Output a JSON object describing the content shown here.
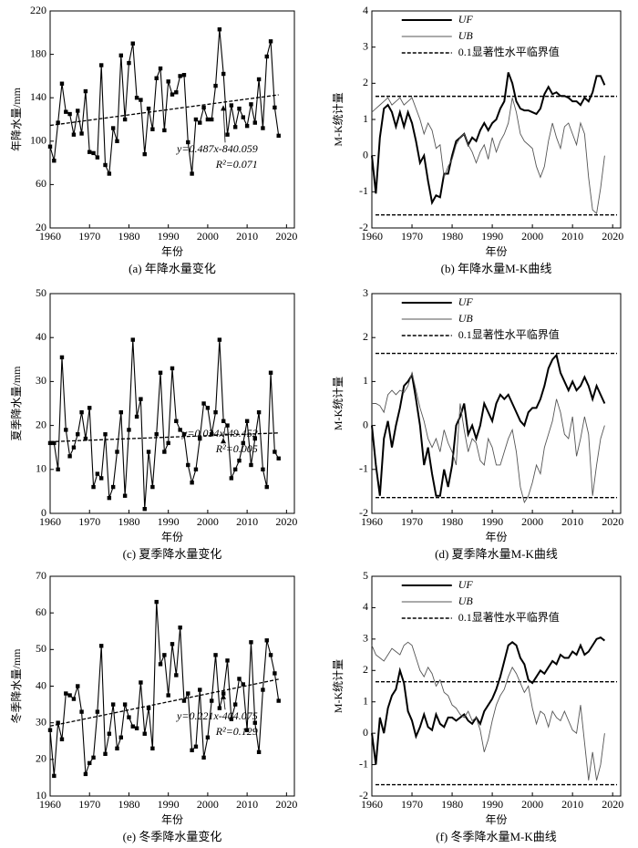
{
  "chart_data": [
    {
      "type": "line",
      "caption": "(a) 年降水量变化",
      "xlabel": "年份",
      "ylabel": "年降水量/mm",
      "color": "#000000",
      "x": [
        1960,
        1961,
        1962,
        1963,
        1964,
        1965,
        1966,
        1967,
        1968,
        1969,
        1970,
        1971,
        1972,
        1973,
        1974,
        1975,
        1976,
        1977,
        1978,
        1979,
        1980,
        1981,
        1982,
        1983,
        1984,
        1985,
        1986,
        1987,
        1988,
        1989,
        1990,
        1991,
        1992,
        1993,
        1994,
        1995,
        1996,
        1997,
        1998,
        1999,
        2000,
        2001,
        2002,
        2003,
        2004,
        2005,
        2006,
        2007,
        2008,
        2009,
        2010,
        2011,
        2012,
        2013,
        2014,
        2015,
        2016,
        2017,
        2018
      ],
      "values": [
        95,
        82,
        117,
        153,
        127,
        125,
        106,
        128,
        107,
        146,
        90,
        89,
        85,
        170,
        78,
        70,
        112,
        100,
        179,
        120,
        172,
        190,
        140,
        138,
        88,
        130,
        111,
        158,
        167,
        110,
        155,
        143,
        145,
        160,
        161,
        99,
        70,
        120,
        117,
        131,
        120,
        120,
        151,
        203,
        162,
        106,
        133,
        113,
        130,
        122,
        114,
        134,
        117,
        157,
        112,
        178,
        192,
        131,
        105
      ],
      "trend": {
        "x": [
          1960,
          2018
        ],
        "values": [
          114.5,
          142.7
        ]
      },
      "annotations": [
        "y=0.487x-840.059",
        "R²=0.071"
      ],
      "xlim": [
        1960,
        2022
      ],
      "xticks": [
        1960,
        1970,
        1980,
        1990,
        2000,
        2010,
        2020
      ],
      "ylim": [
        20,
        220
      ],
      "yticks": [
        20,
        60,
        100,
        140,
        180,
        220
      ]
    },
    {
      "type": "mk",
      "caption": "(b) 年降水量M-K曲线",
      "xlabel": "年份",
      "ylabel": "M-K统计量",
      "x": [
        1960,
        1961,
        1962,
        1963,
        1964,
        1965,
        1966,
        1967,
        1968,
        1969,
        1970,
        1971,
        1972,
        1973,
        1974,
        1975,
        1976,
        1977,
        1978,
        1979,
        1980,
        1981,
        1982,
        1983,
        1984,
        1985,
        1986,
        1987,
        1988,
        1989,
        1990,
        1991,
        1992,
        1993,
        1994,
        1995,
        1996,
        1997,
        1998,
        1999,
        2000,
        2001,
        2002,
        2003,
        2004,
        2005,
        2006,
        2007,
        2008,
        2009,
        2010,
        2011,
        2012,
        2013,
        2014,
        2015,
        2016,
        2017,
        2018
      ],
      "series": [
        {
          "name": "UF",
          "color": "#000000",
          "values": [
            0,
            -1.05,
            0.5,
            1.3,
            1.4,
            1.2,
            0.8,
            1.2,
            0.8,
            1.2,
            0.9,
            0.4,
            -0.2,
            0,
            -0.7,
            -1.3,
            -1.1,
            -1.15,
            -0.5,
            -0.5,
            0,
            0.4,
            0.5,
            0.6,
            0.3,
            0.5,
            0.4,
            0.7,
            0.9,
            0.7,
            0.9,
            1.0,
            1.3,
            1.5,
            2.3,
            2.0,
            1.5,
            1.3,
            1.25,
            1.25,
            1.2,
            1.15,
            1.3,
            1.7,
            1.9,
            1.7,
            1.75,
            1.65,
            1.65,
            1.6,
            1.5,
            1.5,
            1.4,
            1.6,
            1.5,
            1.75,
            2.2,
            2.2,
            1.95
          ]
        },
        {
          "name": "UB",
          "color": "#555555",
          "values": [
            1.2,
            1.3,
            1.4,
            1.5,
            1.6,
            1.4,
            1.5,
            1.6,
            1.4,
            1.5,
            1.6,
            1.3,
            1.0,
            0.6,
            0.9,
            0.7,
            0.2,
            0.3,
            -0.6,
            -0.3,
            -0.1,
            0.3,
            0.5,
            0.6,
            0.3,
            0.1,
            -0.2,
            0.1,
            0.3,
            -0.1,
            0.5,
            0.1,
            0.4,
            0.6,
            0.9,
            1.6,
            1.2,
            0.6,
            0.4,
            0.3,
            0.2,
            -0.3,
            -0.6,
            -0.3,
            0.4,
            0.9,
            0.5,
            0.2,
            0.8,
            0.9,
            0.6,
            0.3,
            0.9,
            0.6,
            -0.6,
            -1.5,
            -1.6,
            -0.9,
            0
          ]
        }
      ],
      "critical": {
        "name": "0.1显著性水平临界值",
        "values": [
          1.64,
          -1.64
        ]
      },
      "xlim": [
        1960,
        2022
      ],
      "xticks": [
        1960,
        1970,
        1980,
        1990,
        2000,
        2010,
        2020
      ],
      "ylim": [
        -2,
        4
      ],
      "yticks": [
        -2,
        -1,
        0,
        1,
        2,
        3,
        4
      ]
    },
    {
      "type": "line",
      "caption": "(c) 夏季降水量变化",
      "xlabel": "年份",
      "ylabel": "夏季降水量/mm",
      "color": "#000000",
      "x": [
        1960,
        1961,
        1962,
        1963,
        1964,
        1965,
        1966,
        1967,
        1968,
        1969,
        1970,
        1971,
        1972,
        1973,
        1974,
        1975,
        1976,
        1977,
        1978,
        1979,
        1980,
        1981,
        1982,
        1983,
        1984,
        1985,
        1986,
        1987,
        1988,
        1989,
        1990,
        1991,
        1992,
        1993,
        1994,
        1995,
        1996,
        1997,
        1998,
        1999,
        2000,
        2001,
        2002,
        2003,
        2004,
        2005,
        2006,
        2007,
        2008,
        2009,
        2010,
        2011,
        2012,
        2013,
        2014,
        2015,
        2016,
        2017,
        2018
      ],
      "values": [
        16,
        16,
        10,
        35.5,
        19,
        13,
        15,
        18,
        23,
        17,
        24,
        6,
        9,
        8,
        18,
        3.5,
        6,
        14,
        23,
        4,
        19,
        39.5,
        22,
        26,
        1,
        14,
        6,
        18,
        32,
        14,
        16,
        33,
        21,
        19,
        18,
        11,
        7,
        10,
        17,
        25,
        24,
        18,
        23,
        39.5,
        21,
        20,
        8,
        10,
        12,
        16,
        21,
        11,
        17,
        23,
        10,
        6,
        32,
        14,
        12.5
      ],
      "trend": {
        "x": [
          1960,
          2018
        ],
        "values": [
          16.3,
          18.3
        ]
      },
      "annotations": [
        "y=0.034x-49.452",
        "R²=0.005"
      ],
      "xlim": [
        1960,
        2022
      ],
      "xticks": [
        1960,
        1970,
        1980,
        1990,
        2000,
        2010,
        2020
      ],
      "ylim": [
        0,
        50
      ],
      "yticks": [
        0,
        10,
        20,
        30,
        40,
        50
      ]
    },
    {
      "type": "mk",
      "caption": "(d) 夏季降水量M-K曲线",
      "xlabel": "年份",
      "ylabel": "M-K统计量",
      "x": [
        1960,
        1961,
        1962,
        1963,
        1964,
        1965,
        1966,
        1967,
        1968,
        1969,
        1970,
        1971,
        1972,
        1973,
        1974,
        1975,
        1976,
        1977,
        1978,
        1979,
        1980,
        1981,
        1982,
        1983,
        1984,
        1985,
        1986,
        1987,
        1988,
        1989,
        1990,
        1991,
        1992,
        1993,
        1994,
        1995,
        1996,
        1997,
        1998,
        1999,
        2000,
        2001,
        2002,
        2003,
        2004,
        2005,
        2006,
        2007,
        2008,
        2009,
        2010,
        2011,
        2012,
        2013,
        2014,
        2015,
        2016,
        2017,
        2018
      ],
      "series": [
        {
          "name": "UF",
          "color": "#000000",
          "values": [
            0,
            -0.9,
            -1.6,
            -0.3,
            0.1,
            -0.5,
            0,
            0.4,
            0.9,
            1.0,
            1.15,
            0.6,
            0,
            -0.9,
            -0.5,
            -1.1,
            -1.6,
            -1.6,
            -1.0,
            -1.4,
            -0.9,
            0,
            0.2,
            0.5,
            -0.2,
            0,
            -0.3,
            0,
            0.5,
            0.3,
            0.1,
            0.5,
            0.7,
            0.6,
            0.7,
            0.5,
            0.3,
            0.1,
            0,
            0.3,
            0.4,
            0.4,
            0.6,
            0.9,
            1.3,
            1.5,
            1.6,
            1.2,
            1.0,
            0.8,
            1.0,
            0.8,
            0.9,
            1.1,
            0.9,
            0.6,
            0.9,
            0.7,
            0.5
          ]
        },
        {
          "name": "UB",
          "color": "#555555",
          "values": [
            0.5,
            0.5,
            0.45,
            0.3,
            0.7,
            0.8,
            0.7,
            0.8,
            0.75,
            0.9,
            1.2,
            0.8,
            0.4,
            0.1,
            -0.3,
            -0.5,
            -0.3,
            -0.6,
            -0.1,
            -0.4,
            -0.6,
            -0.9,
            0.5,
            -0.1,
            -0.6,
            -0.3,
            -0.4,
            -0.8,
            -0.9,
            -0.3,
            -0.5,
            -0.9,
            -0.9,
            -0.6,
            -0.3,
            -0.1,
            -0.6,
            -1.4,
            -1.75,
            -1.6,
            -1.3,
            -0.9,
            -1.1,
            -0.5,
            -0.2,
            0.1,
            0.6,
            0.3,
            -0.2,
            -0.3,
            0.2,
            -0.7,
            -0.3,
            0.2,
            -0.2,
            -1.6,
            -0.9,
            -0.3,
            0
          ]
        }
      ],
      "critical": {
        "name": "0.1显著性水平临界值",
        "values": [
          1.64,
          -1.64
        ]
      },
      "xlim": [
        1960,
        2022
      ],
      "xticks": [
        1960,
        1970,
        1980,
        1990,
        2000,
        2010,
        2020
      ],
      "ylim": [
        -2,
        3
      ],
      "yticks": [
        -2,
        -1,
        0,
        1,
        2,
        3
      ]
    },
    {
      "type": "line",
      "caption": "(e) 冬季降水量变化",
      "xlabel": "年份",
      "ylabel": "冬季降水量/mm",
      "color": "#000000",
      "x": [
        1960,
        1961,
        1962,
        1963,
        1964,
        1965,
        1966,
        1967,
        1968,
        1969,
        1970,
        1971,
        1972,
        1973,
        1974,
        1975,
        1976,
        1977,
        1978,
        1979,
        1980,
        1981,
        1982,
        1983,
        1984,
        1985,
        1986,
        1987,
        1988,
        1989,
        1990,
        1991,
        1992,
        1993,
        1994,
        1995,
        1996,
        1997,
        1998,
        1999,
        2000,
        2001,
        2002,
        2003,
        2004,
        2005,
        2006,
        2007,
        2008,
        2009,
        2010,
        2011,
        2012,
        2013,
        2014,
        2015,
        2016,
        2017,
        2018
      ],
      "values": [
        28,
        15.5,
        30,
        25.5,
        38,
        37.5,
        36.5,
        40,
        33,
        16,
        19,
        20.5,
        33,
        51,
        21.5,
        27,
        35,
        23,
        26,
        35,
        31.5,
        29,
        28.5,
        41,
        27,
        34,
        23,
        63,
        46,
        48.5,
        37.5,
        51.5,
        43,
        56,
        36,
        38,
        22.5,
        23.5,
        39,
        20.5,
        26,
        36,
        48.5,
        34,
        38,
        47,
        31,
        35,
        42,
        40.5,
        28,
        52,
        30,
        22,
        39,
        52.5,
        48.5,
        43.5,
        36
      ],
      "trend": {
        "x": [
          1960,
          2018
        ],
        "values": [
          29.1,
          41.9
        ]
      },
      "annotations": [
        "y=0.221x-404.075",
        "R²=0.129"
      ],
      "xlim": [
        1960,
        2022
      ],
      "xticks": [
        1960,
        1970,
        1980,
        1990,
        2000,
        2010,
        2020
      ],
      "ylim": [
        10,
        70
      ],
      "yticks": [
        10,
        20,
        30,
        40,
        50,
        60,
        70
      ]
    },
    {
      "type": "mk",
      "caption": "(f) 冬季降水量M-K曲线",
      "xlabel": "年份",
      "ylabel": "M-K统计量",
      "x": [
        1960,
        1961,
        1962,
        1963,
        1964,
        1965,
        1966,
        1967,
        1968,
        1969,
        1970,
        1971,
        1972,
        1973,
        1974,
        1975,
        1976,
        1977,
        1978,
        1979,
        1980,
        1981,
        1982,
        1983,
        1984,
        1985,
        1986,
        1987,
        1988,
        1989,
        1990,
        1991,
        1992,
        1993,
        1994,
        1995,
        1996,
        1997,
        1998,
        1999,
        2000,
        2001,
        2002,
        2003,
        2004,
        2005,
        2006,
        2007,
        2008,
        2009,
        2010,
        2011,
        2012,
        2013,
        2014,
        2015,
        2016,
        2017,
        2018
      ],
      "series": [
        {
          "name": "UF",
          "color": "#000000",
          "values": [
            0,
            -1.0,
            0.5,
            0,
            0.8,
            1.2,
            1.4,
            2.0,
            1.6,
            0.7,
            0.4,
            -0.1,
            0.2,
            0.6,
            0.2,
            0.1,
            0.6,
            0.3,
            0.2,
            0.5,
            0.5,
            0.4,
            0.5,
            0.6,
            0.4,
            0.3,
            0.5,
            0.3,
            0.7,
            0.9,
            1.1,
            1.4,
            1.8,
            2.3,
            2.8,
            2.9,
            2.8,
            2.4,
            2.2,
            1.7,
            1.6,
            1.8,
            2.0,
            1.9,
            2.1,
            2.3,
            2.2,
            2.5,
            2.4,
            2.4,
            2.6,
            2.5,
            2.8,
            2.5,
            2.6,
            2.8,
            3.0,
            3.05,
            2.95
          ]
        },
        {
          "name": "UB",
          "color": "#555555",
          "values": [
            2.8,
            2.5,
            2.4,
            2.3,
            2.5,
            2.7,
            2.6,
            2.5,
            2.8,
            2.9,
            2.8,
            2.4,
            2.0,
            1.8,
            2.1,
            1.9,
            1.5,
            1.7,
            1.3,
            1.2,
            0.9,
            0.8,
            0.6,
            0.5,
            0.7,
            0.4,
            0.5,
            0.1,
            -0.6,
            -0.2,
            0.4,
            0.9,
            1.2,
            1.4,
            1.8,
            2.1,
            1.9,
            1.6,
            1.3,
            1.5,
            0.8,
            0.3,
            0.7,
            0.6,
            0.2,
            0.7,
            0.5,
            0.4,
            0.7,
            0.4,
            0.1,
            0.0,
            0.9,
            -0.3,
            -1.5,
            -0.6,
            -1.5,
            -1.0,
            0
          ]
        }
      ],
      "critical": {
        "name": "0.1显著性水平临界值",
        "values": [
          1.64,
          -1.64
        ]
      },
      "xlim": [
        1960,
        2022
      ],
      "xticks": [
        1960,
        1970,
        1980,
        1990,
        2000,
        2010,
        2020
      ],
      "ylim": [
        -2,
        5
      ],
      "yticks": [
        -2,
        -1,
        0,
        1,
        2,
        3,
        4,
        5
      ]
    }
  ]
}
